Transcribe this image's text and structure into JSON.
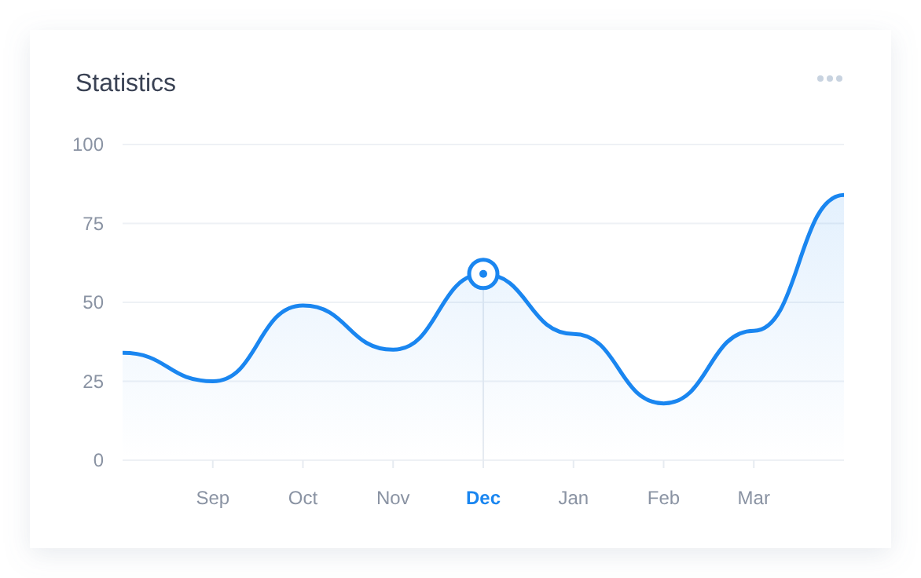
{
  "chart_data": {
    "type": "area",
    "title": "Statistics",
    "categories": [
      null,
      "Sep",
      "Oct",
      "Nov",
      "Dec",
      "Jan",
      "Feb",
      "Mar",
      null
    ],
    "series": [
      {
        "color": "#1a86f0",
        "values": [
          34,
          25,
          49,
          35,
          59,
          40,
          18,
          41,
          84
        ]
      }
    ],
    "ylim": [
      0,
      100
    ],
    "yticks": [
      0,
      25,
      50,
      75,
      100
    ],
    "grid": "y",
    "ref_lines": [
      {
        "axis": "x",
        "value": "Dec",
        "color": "#e6ebf1"
      }
    ]
  }
}
